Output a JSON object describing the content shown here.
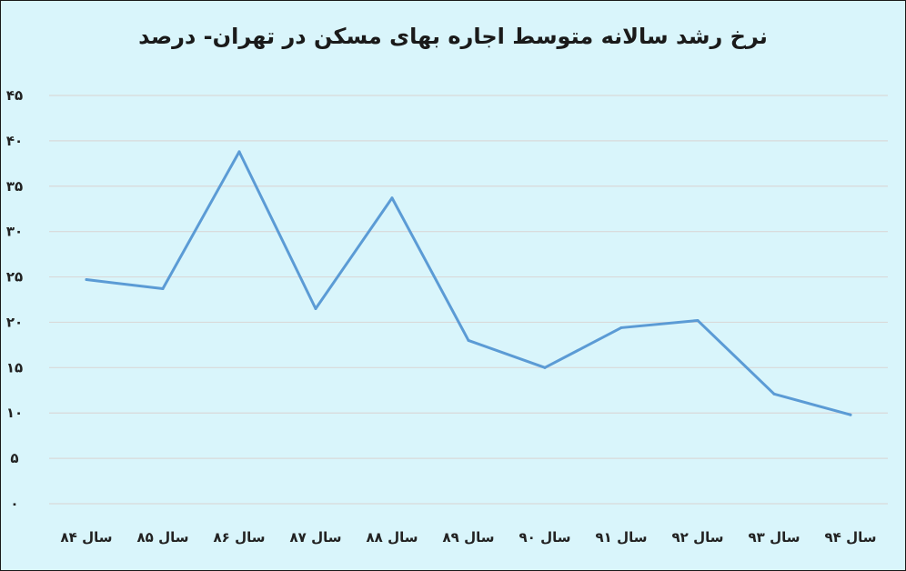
{
  "chart_data": {
    "type": "line",
    "title": "نرخ رشد سالانه متوسط اجاره بهای مسکن در تهران- درصد",
    "xlabel": "",
    "ylabel": "",
    "categories": [
      "سال ۸۴",
      "سال ۸۵",
      "سال ۸۶",
      "سال ۸۷",
      "سال ۸۸",
      "سال ۸۹",
      "سال ۹۰",
      "سال ۹۱",
      "سال ۹۲",
      "سال ۹۳",
      "سال ۹۴"
    ],
    "series": [
      {
        "values": [
          24.7,
          23.7,
          38.8,
          21.5,
          33.7,
          18,
          15,
          19.4,
          20.2,
          12.1,
          9.8
        ]
      }
    ],
    "ylim": [
      0,
      45
    ],
    "yticks": [
      0,
      5,
      10,
      15,
      20,
      25,
      30,
      35,
      40,
      45
    ],
    "ytick_labels": [
      "۰",
      "۵",
      "۱۰",
      "۱۵",
      "۲۰",
      "۲۵",
      "۳۰",
      "۳۵",
      "۴۰",
      "۴۵"
    ],
    "grid": true,
    "colors": {
      "line": "#5b9bd5",
      "background": "#d9f5fb",
      "grid": "#d9d9d9"
    }
  }
}
